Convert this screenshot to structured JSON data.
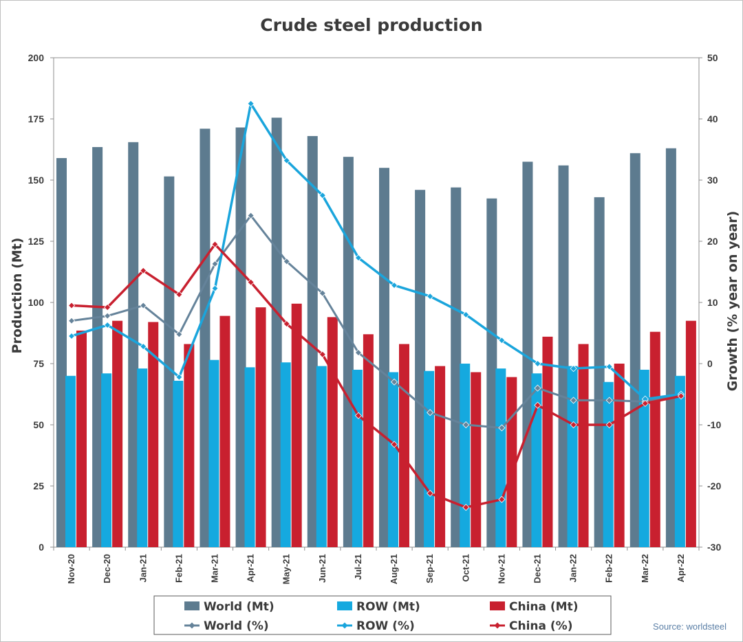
{
  "chart_data": {
    "type": "bar",
    "title": "Crude steel production",
    "ylabel": "Production (Mt)",
    "y2label": "Growth (% year on year)",
    "ylim": [
      0,
      200
    ],
    "y2lim": [
      -30,
      50
    ],
    "yticks": [
      0,
      25,
      50,
      75,
      100,
      125,
      150,
      175,
      200
    ],
    "y2ticks": [
      -30,
      -20,
      -10,
      0,
      10,
      20,
      30,
      40,
      50
    ],
    "categories": [
      "Nov-20",
      "Dec-20",
      "Jan-21",
      "Feb-21",
      "Mar-21",
      "Apr-21",
      "May-21",
      "Jun-21",
      "Jul-21",
      "Aug-21",
      "Sep-21",
      "Oct-21",
      "Nov-21",
      "Dec-21",
      "Jan-22",
      "Feb-22",
      "Mar-22",
      "Apr-22"
    ],
    "bar_series": [
      {
        "name": "World (Mt)",
        "color": "#5d7b8f",
        "values": [
          159,
          163.5,
          165.5,
          151.5,
          171,
          171.5,
          175.5,
          168,
          159.5,
          155,
          146,
          147,
          142.5,
          157.5,
          156,
          143,
          161,
          163
        ]
      },
      {
        "name": "ROW (Mt)",
        "color": "#15a9df",
        "values": [
          70,
          71,
          73,
          68,
          76.5,
          73.5,
          75.5,
          74,
          72.5,
          71.5,
          72,
          75,
          73,
          71,
          74,
          67.5,
          72.5,
          70
        ]
      },
      {
        "name": "China (Mt)",
        "color": "#c8202f",
        "values": [
          88.5,
          92.5,
          92,
          83,
          94.5,
          98,
          99.5,
          94,
          87,
          83,
          74,
          71.5,
          69.5,
          86,
          83,
          75,
          88,
          92.5
        ]
      }
    ],
    "line_series": [
      {
        "name": "World (%)",
        "color": "#65839a",
        "values": [
          7,
          7.8,
          9.5,
          4.8,
          16.3,
          24.2,
          16.7,
          11.5,
          1.8,
          -3,
          -8,
          -10,
          -10.5,
          -4,
          -6,
          -6,
          -6.2,
          -5
        ]
      },
      {
        "name": "ROW (%)",
        "color": "#1aa5dc",
        "values": [
          4.5,
          6.3,
          2.8,
          -2.2,
          12.3,
          42.5,
          33.2,
          27.5,
          17.3,
          12.8,
          11,
          8,
          3.8,
          0,
          -0.8,
          -0.5,
          -5.8,
          -5
        ]
      },
      {
        "name": "China (%)",
        "color": "#c8202f",
        "values": [
          9.5,
          9.2,
          15.2,
          11.3,
          19.5,
          13.3,
          6.5,
          1.5,
          -8.5,
          -13.2,
          -21.2,
          -23.5,
          -22.2,
          -6.8,
          -10,
          -10,
          -6.5,
          -5.3
        ]
      }
    ],
    "legend_position": "bottom",
    "source": "Source: worldsteel"
  }
}
